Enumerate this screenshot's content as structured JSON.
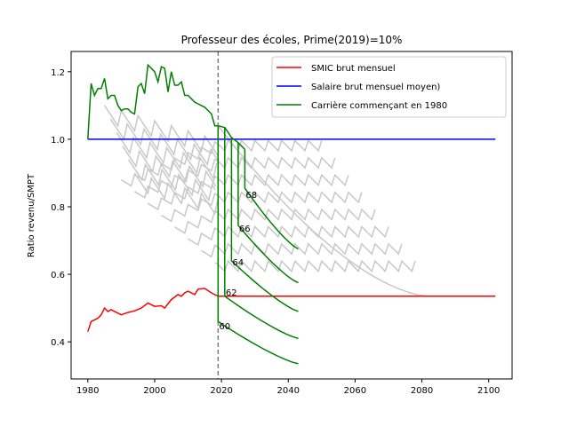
{
  "chart_data": {
    "type": "line",
    "title": "Professeur des écoles, Prime(2019)=10%",
    "xlabel": "",
    "ylabel": "Ratio revenu/SMPT",
    "xlim": [
      1975,
      2107
    ],
    "ylim": [
      0.29,
      1.26
    ],
    "x_ticks": [
      1980,
      2000,
      2020,
      2040,
      2060,
      2080,
      2100
    ],
    "y_ticks": [
      0.4,
      0.6,
      0.8,
      1.0,
      1.2
    ],
    "x_tick_labels": [
      "1980",
      "2000",
      "2020",
      "2040",
      "2060",
      "2080",
      "2100"
    ],
    "y_tick_labels": [
      "0.4",
      "0.6",
      "0.8",
      "1.0",
      "1.2"
    ],
    "grid": false,
    "legend_position": "top-right",
    "vline": {
      "x": 2019,
      "style": "dashed",
      "color": "#7f7f7f"
    },
    "colors": {
      "smic": "#ff0000",
      "salaire": "#0000ff",
      "carriere": "#008000",
      "others": "#c8c8c8"
    },
    "series": [
      {
        "name": "SMIC brut mensuel",
        "role": "smic",
        "x": [
          1980,
          1981,
          1982,
          1983,
          1984,
          1985,
          1986,
          1987,
          1988,
          1989,
          1990,
          1992,
          1994,
          1996,
          1998,
          1999,
          2000,
          2002,
          2003,
          2005,
          2007,
          2008,
          2009,
          2010,
          2012,
          2013,
          2015,
          2017,
          2019,
          2020,
          2102
        ],
        "y": [
          0.43,
          0.46,
          0.465,
          0.47,
          0.48,
          0.5,
          0.49,
          0.495,
          0.49,
          0.485,
          0.48,
          0.487,
          0.492,
          0.5,
          0.515,
          0.51,
          0.505,
          0.507,
          0.5,
          0.525,
          0.54,
          0.535,
          0.545,
          0.55,
          0.54,
          0.556,
          0.558,
          0.545,
          0.535,
          0.535,
          0.535
        ]
      },
      {
        "name": "Salaire brut mensuel moyen)",
        "role": "salaire",
        "x": [
          1980,
          2102
        ],
        "y": [
          1.0,
          1.0
        ]
      },
      {
        "name": "Carrière commençant en 1980",
        "role": "carriere",
        "x": [
          1980,
          1981,
          1982,
          1983,
          1984,
          1985,
          1986,
          1987,
          1988,
          1989,
          1990,
          1991,
          1992,
          1993,
          1994,
          1995,
          1996,
          1997,
          1998,
          1999,
          2000,
          2001,
          2002,
          2003,
          2004,
          2005,
          2006,
          2007,
          2008,
          2009,
          2010,
          2011,
          2012,
          2013,
          2014,
          2015,
          2016,
          2017,
          2018,
          2019
        ],
        "y": [
          1.0,
          1.165,
          1.13,
          1.15,
          1.15,
          1.18,
          1.12,
          1.13,
          1.13,
          1.1,
          1.085,
          1.09,
          1.09,
          1.08,
          1.075,
          1.155,
          1.165,
          1.135,
          1.22,
          1.21,
          1.2,
          1.17,
          1.215,
          1.21,
          1.14,
          1.2,
          1.16,
          1.16,
          1.17,
          1.13,
          1.13,
          1.12,
          1.11,
          1.105,
          1.1,
          1.095,
          1.085,
          1.075,
          1.04,
          1.04
        ]
      }
    ],
    "retirement_curves": [
      {
        "label": "60",
        "start": 2019,
        "top": 1.04,
        "after_drop": 0.46,
        "end_x": 2043,
        "end_y": 0.335
      },
      {
        "label": "62",
        "start": 2021,
        "top": 1.035,
        "after_drop": 0.535,
        "end_x": 2043,
        "end_y": 0.41
      },
      {
        "label": "64",
        "start": 2023,
        "top": 1.005,
        "after_drop": 0.64,
        "end_x": 2043,
        "end_y": 0.49
      },
      {
        "label": "66",
        "start": 2025,
        "top": 0.99,
        "after_drop": 0.745,
        "end_x": 2043,
        "end_y": 0.575
      },
      {
        "label": "68",
        "start": 2027,
        "top": 0.97,
        "after_drop": 0.855,
        "end_x": 2043,
        "end_y": 0.675
      }
    ],
    "annotations": [
      {
        "text": "60",
        "x": 2019,
        "y": 0.45
      },
      {
        "text": "62",
        "x": 2021,
        "y": 0.55
      },
      {
        "text": "64",
        "x": 2023,
        "y": 0.64
      },
      {
        "text": "66",
        "x": 2025,
        "y": 0.74
      },
      {
        "text": "68",
        "x": 2027,
        "y": 0.84
      }
    ],
    "legend_entries": [
      "SMIC brut mensuel",
      "Salaire brut mensuel moyen)",
      "Carrière commençant en 1980"
    ]
  }
}
